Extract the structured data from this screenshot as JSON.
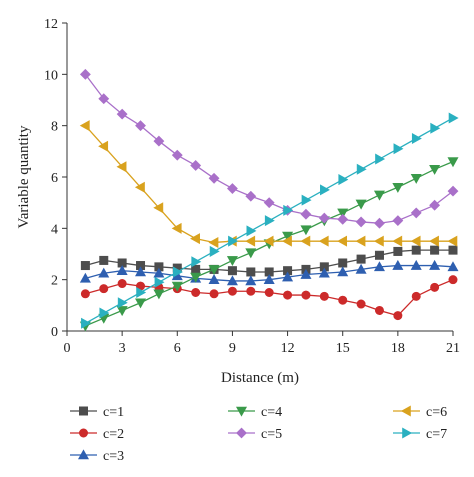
{
  "chart_data": {
    "type": "line",
    "title": "",
    "xlabel": "Distance (m)",
    "ylabel": "Variable quantity",
    "xlim": [
      0,
      21
    ],
    "ylim": [
      0,
      12
    ],
    "xticks": [
      0,
      3,
      6,
      9,
      12,
      15,
      18,
      21
    ],
    "yticks": [
      0,
      2,
      4,
      6,
      8,
      10,
      12
    ],
    "grid": false,
    "legend": "bottom",
    "x": [
      1,
      2,
      3,
      4,
      5,
      6,
      7,
      8,
      9,
      10,
      11,
      12,
      13,
      14,
      15,
      16,
      17,
      18,
      19,
      20,
      21
    ],
    "series": [
      {
        "name": "c=1",
        "color": "#4d4d4d",
        "marker": "square",
        "values": [
          2.55,
          2.75,
          2.65,
          2.55,
          2.5,
          2.45,
          2.4,
          2.4,
          2.35,
          2.3,
          2.3,
          2.35,
          2.4,
          2.5,
          2.65,
          2.8,
          2.95,
          3.1,
          3.15,
          3.15,
          3.15
        ]
      },
      {
        "name": "c=2",
        "color": "#cc2a2a",
        "marker": "circle",
        "values": [
          1.45,
          1.65,
          1.85,
          1.75,
          1.7,
          1.65,
          1.5,
          1.45,
          1.55,
          1.55,
          1.5,
          1.4,
          1.4,
          1.35,
          1.2,
          1.05,
          0.8,
          0.6,
          1.35,
          1.7,
          2.0
        ]
      },
      {
        "name": "c=3",
        "color": "#2e5fb0",
        "marker": "triangle-up",
        "values": [
          2.05,
          2.25,
          2.35,
          2.3,
          2.25,
          2.15,
          2.05,
          2.0,
          1.95,
          1.95,
          2.0,
          2.1,
          2.2,
          2.25,
          2.3,
          2.4,
          2.5,
          2.55,
          2.55,
          2.55,
          2.5
        ]
      },
      {
        "name": "c=4",
        "color": "#3a9a4a",
        "marker": "triangle-down",
        "values": [
          0.2,
          0.5,
          0.8,
          1.1,
          1.45,
          1.75,
          2.1,
          2.4,
          2.75,
          3.05,
          3.4,
          3.7,
          3.95,
          4.3,
          4.6,
          4.95,
          5.3,
          5.6,
          5.95,
          6.3,
          6.6
        ]
      },
      {
        "name": "c=5",
        "color": "#a970c9",
        "marker": "diamond",
        "values": [
          10.0,
          9.05,
          8.45,
          8.0,
          7.4,
          6.85,
          6.45,
          5.95,
          5.55,
          5.25,
          5.0,
          4.7,
          4.55,
          4.4,
          4.35,
          4.25,
          4.2,
          4.3,
          4.6,
          4.9,
          5.45
        ]
      },
      {
        "name": "c=6",
        "color": "#d9a21e",
        "marker": "triangle-left",
        "values": [
          8.0,
          7.2,
          6.4,
          5.6,
          4.8,
          4.0,
          3.6,
          3.45,
          3.5,
          3.5,
          3.5,
          3.5,
          3.5,
          3.5,
          3.5,
          3.5,
          3.5,
          3.5,
          3.5,
          3.5,
          3.5
        ]
      },
      {
        "name": "c=7",
        "color": "#2ab0c0",
        "marker": "triangle-right",
        "values": [
          0.3,
          0.7,
          1.1,
          1.5,
          1.9,
          2.3,
          2.7,
          3.1,
          3.5,
          3.9,
          4.3,
          4.7,
          5.1,
          5.5,
          5.9,
          6.3,
          6.7,
          7.1,
          7.5,
          7.9,
          8.3
        ]
      }
    ]
  }
}
